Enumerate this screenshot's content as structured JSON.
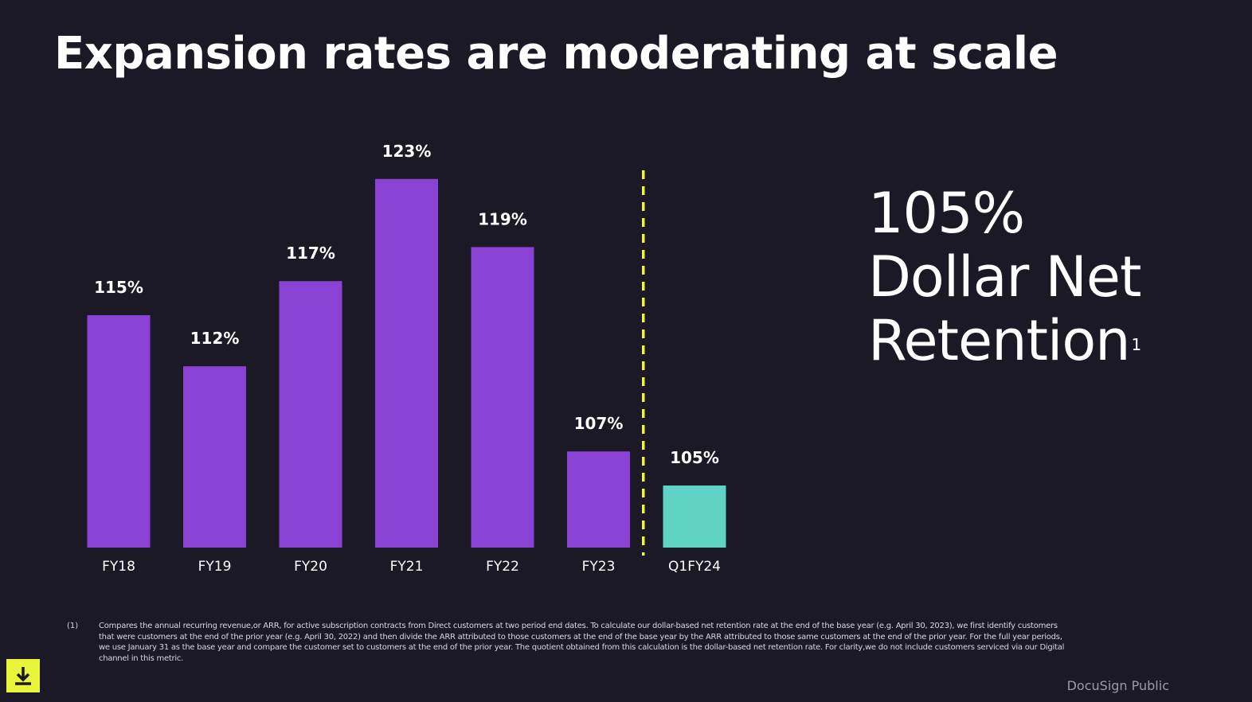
{
  "slide": {
    "title": "Expansion rates are moderating at scale",
    "kpi": {
      "value": "105%",
      "line1": "Dollar Net",
      "line2": "Retention",
      "footnote_ref": "1"
    },
    "footnote": {
      "marker": "(1)",
      "text": "Compares the annual recurring revenue,or ARR, for active subscription contracts from Direct customers at two period end dates. To calculate our dollar-based net retention rate at the end of the base year (e.g. April 30, 2023), we first identify customers that were customers at the end of the prior year (e.g. April 30, 2022) and then divide the ARR attributed to those customers at the end of the base year by the ARR attributed to those same customers at the end of the prior year. For the full year periods, we use January 31 as the base year and compare the customer set to customers at the end of the prior year. The quotient obtained from this calculation is the dollar-based net retention rate. For clarity,we do not include customers serviced via our Digital channel in this metric."
    },
    "brand": "DocuSign Public",
    "download_icon": "download-icon"
  },
  "colors": {
    "background": "#1c1926",
    "bar": "#8a42d4",
    "highlight_bar": "#5ed3c6",
    "divider": "#e8f53a",
    "text": "#ffffff"
  },
  "chart_data": {
    "type": "bar",
    "title": "",
    "xlabel": "",
    "ylabel": "",
    "categories": [
      "FY18",
      "FY19",
      "FY20",
      "FY21",
      "FY22",
      "FY23",
      "Q1FY24"
    ],
    "values": [
      115,
      112,
      117,
      123,
      119,
      107,
      105
    ],
    "data_labels": [
      "115%",
      "112%",
      "117%",
      "123%",
      "119%",
      "107%",
      "105%"
    ],
    "highlight_category": "Q1FY24",
    "divider_before": "Q1FY24",
    "axes_visible": false,
    "grid": false,
    "legend": "none"
  }
}
